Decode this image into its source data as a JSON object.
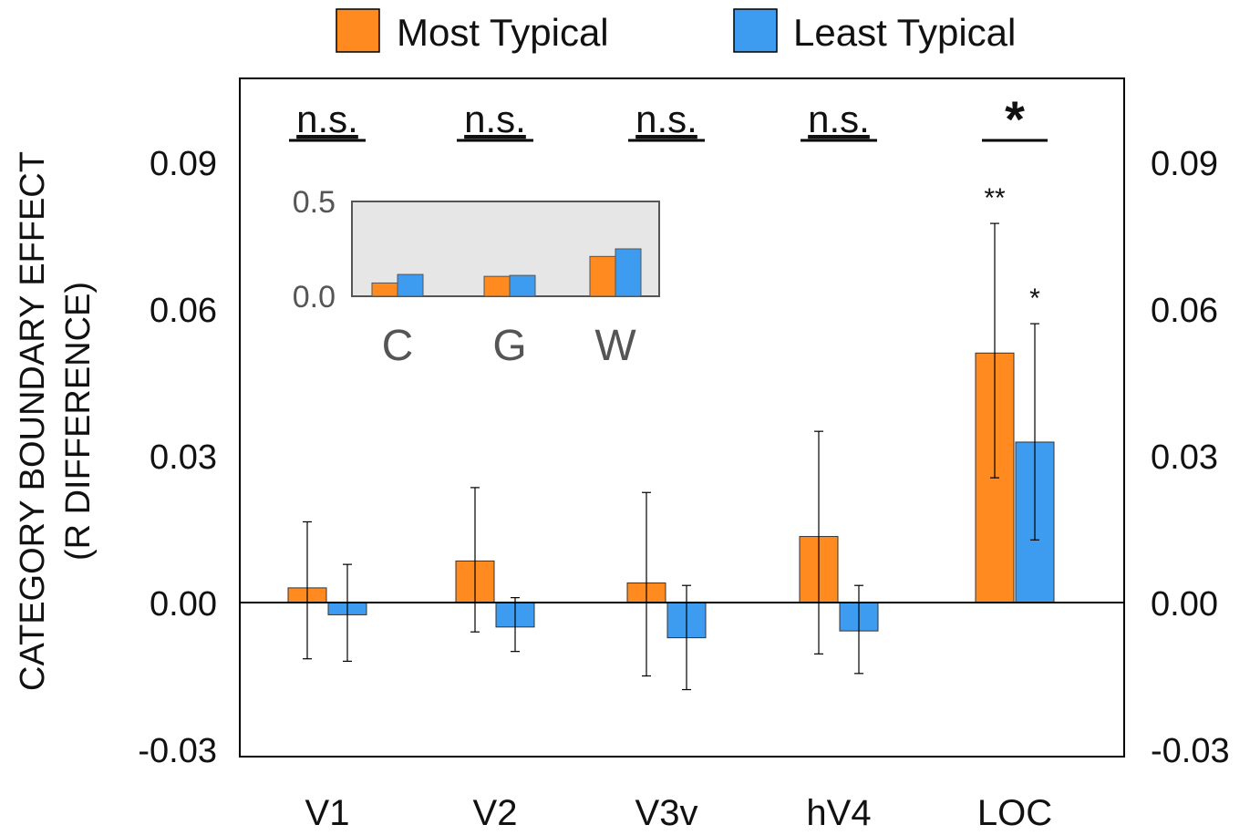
{
  "legend": {
    "items": [
      {
        "label": "Most Typical",
        "color": "#FF8A1F"
      },
      {
        "label": "Least Typical",
        "color": "#3D9BF0"
      }
    ]
  },
  "chart_data": [
    {
      "type": "bar",
      "ylabel_line1": "CATEGORY BOUNDARY EFFECT",
      "ylabel_line2": "(R  DIFFERENCE)",
      "ylim": [
        -0.03,
        0.12
      ],
      "yticks": [
        "0.09",
        "0.06",
        "0.03",
        "0.00",
        "-0.03"
      ],
      "ytick_values": [
        0.09,
        0.06,
        0.03,
        0.0,
        -0.03
      ],
      "right_axis_ticks": [
        "0.09",
        "0.06",
        "0.03",
        "0.00",
        "-0.03"
      ],
      "categories": [
        "V1",
        "V2",
        "V3v",
        "hV4",
        "LOC"
      ],
      "series": [
        {
          "name": "Most Typical",
          "color": "#FF8A1F",
          "values": [
            0.003,
            0.0085,
            0.004,
            0.0135,
            0.051
          ],
          "err_low": [
            -0.0115,
            -0.006,
            -0.015,
            -0.0105,
            0.0255
          ],
          "err_high": [
            0.0165,
            0.0235,
            0.0225,
            0.035,
            0.0775
          ]
        },
        {
          "name": "Least Typical",
          "color": "#3D9BF0",
          "values": [
            -0.0025,
            -0.005,
            -0.0072,
            -0.0058,
            0.0328
          ],
          "err_low": [
            -0.012,
            -0.01,
            -0.0178,
            -0.0145,
            0.0128
          ],
          "err_high": [
            0.0078,
            0.001,
            0.0035,
            0.0035,
            0.057
          ]
        }
      ],
      "significance": [
        "n.s.",
        "n.s.",
        "n.s.",
        "n.s.",
        "*"
      ],
      "bar_annotations": [
        {
          "category": "LOC",
          "series": "Most Typical",
          "text": "**"
        },
        {
          "category": "LOC",
          "series": "Least Typical",
          "text": "*"
        }
      ],
      "grid": false
    },
    {
      "type": "bar",
      "inset": true,
      "categories": [
        "C",
        "G",
        "W"
      ],
      "yticks": [
        "0.5",
        "0.0"
      ],
      "ytick_values": [
        0.5,
        0.0
      ],
      "ylim": [
        0.0,
        0.5
      ],
      "series": [
        {
          "name": "Most Typical",
          "color": "#FF8A1F",
          "values": [
            0.07,
            0.105,
            0.21
          ]
        },
        {
          "name": "Least Typical",
          "color": "#3D9BF0",
          "values": [
            0.115,
            0.11,
            0.25
          ]
        }
      ]
    }
  ]
}
